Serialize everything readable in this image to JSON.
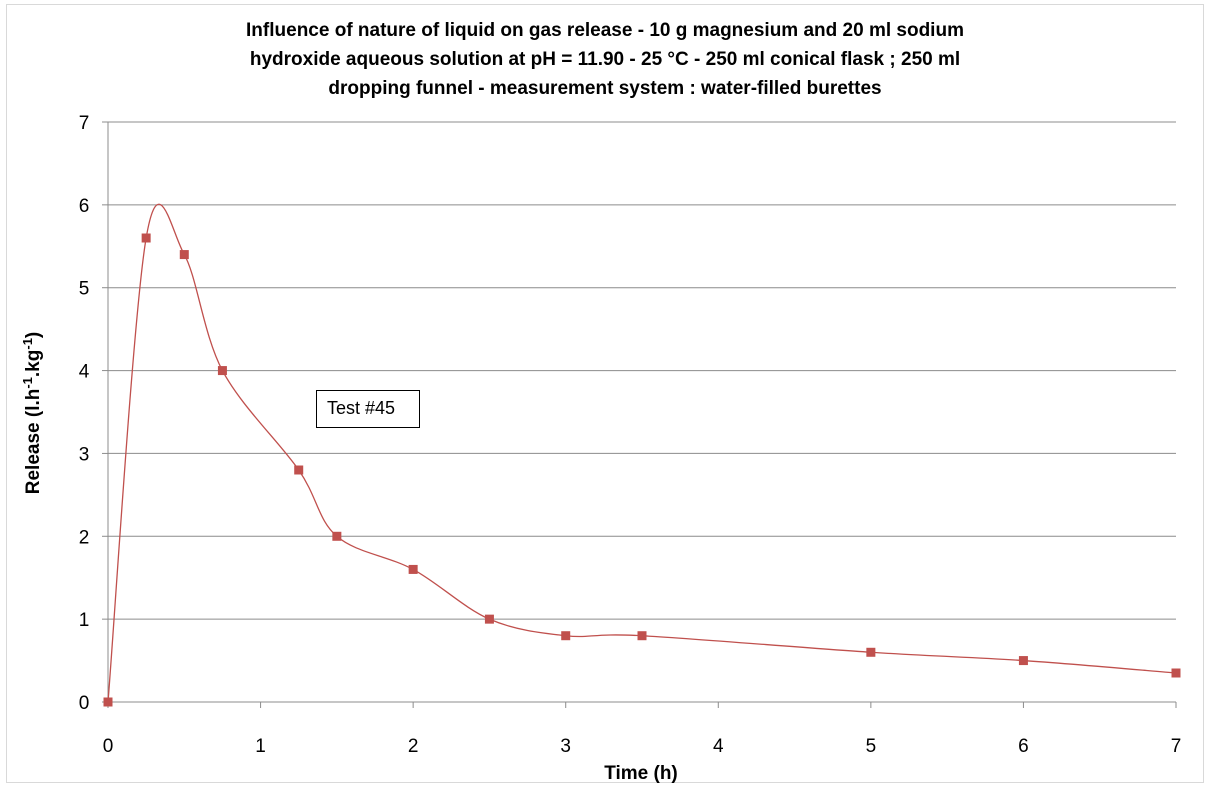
{
  "chart_data": {
    "type": "line",
    "title": "Influence of nature of liquid on gas release - 10 g magnesium and 20 ml sodium hydroxide aqueous solution at pH = 11.90 - 25 °C - 250 ml conical flask ; 250 ml dropping funnel - measurement system : water-filled burettes",
    "title_lines": [
      "Influence of nature of liquid on gas release - 10 g magnesium and 20 ml sodium",
      "hydroxide aqueous solution at pH = 11.90 - 25 °C - 250 ml conical flask ; 250 ml",
      "dropping funnel - measurement system : water-filled burettes"
    ],
    "xlabel": "Time (h)",
    "ylabel": "Release (l.h-1.kg-1)",
    "ylabel_parts": {
      "base": "Release (l.h",
      "sup1": "-1",
      "mid": ".kg",
      "sup2": "-1",
      "end": ")"
    },
    "xlim": [
      0,
      7
    ],
    "ylim": [
      0,
      7
    ],
    "x_ticks": [
      "0",
      "1",
      "2",
      "3",
      "4",
      "5",
      "6",
      "7"
    ],
    "y_ticks": [
      "0",
      "1",
      "2",
      "3",
      "4",
      "5",
      "6",
      "7"
    ],
    "grid": {
      "horizontal": true,
      "vertical": false
    },
    "line_color": "#c0504d",
    "marker_color": "#c0504d",
    "series": [
      {
        "x": [
          0,
          0.25,
          0.5,
          0.75,
          1.25,
          1.5,
          2,
          2.5,
          3,
          3.5,
          5,
          6,
          7
        ],
        "y": [
          0,
          5.6,
          5.4,
          4.0,
          2.8,
          2.0,
          1.6,
          1.0,
          0.8,
          0.8,
          0.6,
          0.5,
          0.35
        ]
      }
    ],
    "annotations": [
      {
        "text": "Test #45"
      }
    ]
  }
}
